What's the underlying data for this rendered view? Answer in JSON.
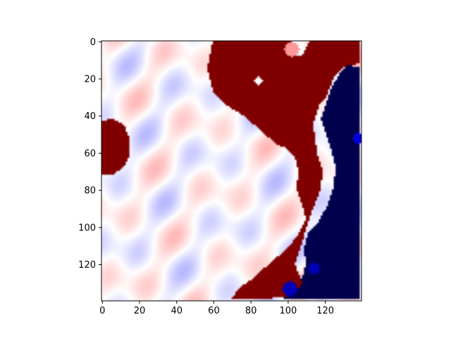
{
  "chart_data": {
    "type": "heatmap",
    "title": "",
    "xlabel": "",
    "ylabel": "",
    "xlim": [
      0,
      139
    ],
    "ylim": [
      139,
      0
    ],
    "grid": false,
    "colormap": "seismic",
    "x_ticks": [
      0,
      20,
      40,
      60,
      80,
      100,
      120
    ],
    "y_ticks": [
      0,
      20,
      40,
      60,
      80,
      100,
      120
    ],
    "x_tick_labels": [
      "0",
      "20",
      "40",
      "60",
      "80",
      "100",
      "120"
    ],
    "y_tick_labels": [
      "0",
      "20",
      "40",
      "60",
      "80",
      "100",
      "120"
    ],
    "grid_size": [
      140,
      140
    ],
    "regions": [
      {
        "description": "strong positive (dark red) field, upper center-right",
        "polygon": [
          [
            60,
            0
          ],
          [
            102,
            0
          ],
          [
            102,
            8
          ],
          [
            108,
            8
          ],
          [
            112,
            0
          ],
          [
            139,
            0
          ],
          [
            139,
            12
          ],
          [
            130,
            14
          ],
          [
            125,
            20
          ],
          [
            121,
            30
          ],
          [
            117,
            35
          ],
          [
            114,
            45
          ],
          [
            116,
            60
          ],
          [
            119,
            70
          ],
          [
            118,
            80
          ],
          [
            112,
            95
          ],
          [
            109,
            105
          ],
          [
            107,
            112
          ],
          [
            104,
            120
          ],
          [
            108,
            130
          ],
          [
            104,
            137
          ],
          [
            88,
            139
          ],
          [
            70,
            139
          ],
          [
            75,
            132
          ],
          [
            82,
            128
          ],
          [
            88,
            122
          ],
          [
            95,
            116
          ],
          [
            100,
            112
          ],
          [
            106,
            104
          ],
          [
            110,
            96
          ],
          [
            108,
            88
          ],
          [
            105,
            80
          ],
          [
            106,
            70
          ],
          [
            104,
            62
          ],
          [
            100,
            58
          ],
          [
            95,
            56
          ],
          [
            90,
            52
          ],
          [
            82,
            45
          ],
          [
            76,
            40
          ],
          [
            68,
            35
          ],
          [
            60,
            27
          ],
          [
            57,
            15
          ],
          [
            59,
            5
          ]
        ],
        "value": 1.0
      },
      {
        "description": "strong positive (dark red) lobe, left edge",
        "polygon": [
          [
            0,
            43
          ],
          [
            6,
            42
          ],
          [
            12,
            45
          ],
          [
            15,
            52
          ],
          [
            15,
            62
          ],
          [
            12,
            68
          ],
          [
            6,
            72
          ],
          [
            0,
            72
          ]
        ],
        "value": 1.0
      },
      {
        "description": "strong negative (dark blue) field, right edge",
        "polygon": [
          [
            139,
            14
          ],
          [
            132,
            13
          ],
          [
            128,
            18
          ],
          [
            124,
            25
          ],
          [
            121,
            34
          ],
          [
            118,
            42
          ],
          [
            121,
            50
          ],
          [
            124,
            60
          ],
          [
            126,
            68
          ],
          [
            125,
            78
          ],
          [
            122,
            88
          ],
          [
            117,
            97
          ],
          [
            111,
            104
          ],
          [
            109,
            112
          ],
          [
            110,
            120
          ],
          [
            108,
            128
          ],
          [
            102,
            133
          ],
          [
            98,
            139
          ],
          [
            139,
            139
          ]
        ],
        "value": -1.0
      },
      {
        "description": "light white interior with faint blue/red noise",
        "polygon": [
          [
            0,
            0
          ],
          [
            60,
            0
          ],
          [
            57,
            15
          ],
          [
            60,
            27
          ],
          [
            68,
            35
          ],
          [
            76,
            40
          ],
          [
            82,
            45
          ],
          [
            90,
            52
          ],
          [
            95,
            56
          ],
          [
            100,
            58
          ],
          [
            104,
            62
          ],
          [
            106,
            70
          ],
          [
            105,
            80
          ],
          [
            108,
            88
          ],
          [
            110,
            96
          ],
          [
            106,
            104
          ],
          [
            100,
            112
          ],
          [
            95,
            116
          ],
          [
            88,
            122
          ],
          [
            82,
            128
          ],
          [
            75,
            132
          ],
          [
            70,
            139
          ],
          [
            0,
            139
          ]
        ],
        "value": 0.0
      }
    ],
    "highlights": [
      {
        "description": "white spot inside red field",
        "center": [
          84,
          21
        ],
        "radius": 2,
        "value": 0.0
      },
      {
        "description": "light notch at top of red field",
        "center": [
          102,
          4
        ],
        "radius": 4,
        "value": 0.2
      },
      {
        "description": "bright blue blob near bottom",
        "center": [
          101,
          133
        ],
        "radius": 4,
        "value": -0.7
      },
      {
        "description": "bright blue blob near bottom right",
        "center": [
          114,
          122
        ],
        "radius": 3,
        "value": -0.7
      },
      {
        "description": "bright blue streak on right edge",
        "center": [
          138,
          52
        ],
        "radius": 3,
        "value": -0.6
      }
    ]
  }
}
